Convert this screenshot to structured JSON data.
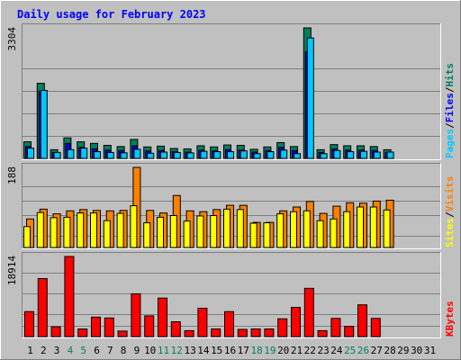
{
  "chart_data": [
    {
      "type": "bar",
      "title": "Daily usage for February 2023",
      "panel": "hits",
      "ylabel_max": "3304",
      "y_axis_label_parts": [
        "Pages",
        "/",
        "Files",
        "/",
        "Hits"
      ],
      "categories": [
        "1",
        "2",
        "3",
        "4",
        "5",
        "6",
        "7",
        "8",
        "9",
        "10",
        "11",
        "12",
        "13",
        "14",
        "15",
        "16",
        "17",
        "18",
        "19",
        "20",
        "21",
        "22",
        "23",
        "24",
        "25",
        "26",
        "27",
        "28",
        "29",
        "30",
        "31"
      ],
      "ylim": [
        0,
        3304
      ],
      "series": [
        {
          "name": "Hits",
          "color": "#007f5f",
          "values": [
            420,
            1900,
            220,
            520,
            420,
            380,
            330,
            300,
            480,
            290,
            310,
            250,
            240,
            320,
            290,
            340,
            330,
            230,
            290,
            400,
            300,
            3304,
            220,
            350,
            320,
            320,
            300,
            220,
            0,
            0,
            0
          ]
        },
        {
          "name": "Files",
          "color": "#0000ff",
          "values": [
            300,
            1700,
            150,
            380,
            280,
            240,
            210,
            200,
            320,
            190,
            200,
            170,
            160,
            210,
            190,
            220,
            210,
            160,
            200,
            280,
            200,
            2700,
            150,
            240,
            210,
            210,
            200,
            150,
            0,
            0,
            0
          ]
        },
        {
          "name": "Pages",
          "color": "#00c8ff",
          "values": [
            260,
            1720,
            150,
            220,
            260,
            170,
            150,
            140,
            230,
            130,
            160,
            150,
            140,
            180,
            170,
            170,
            190,
            120,
            170,
            210,
            120,
            3050,
            120,
            200,
            170,
            180,
            160,
            160,
            0,
            0,
            0
          ]
        }
      ]
    },
    {
      "type": "bar",
      "panel": "visits",
      "ylabel_max": "188",
      "y_axis_label_parts": [
        "Sites",
        "/",
        "Visits"
      ],
      "categories": [
        "1",
        "2",
        "3",
        "4",
        "5",
        "6",
        "7",
        "8",
        "9",
        "10",
        "11",
        "12",
        "13",
        "14",
        "15",
        "16",
        "17",
        "18",
        "19",
        "20",
        "21",
        "22",
        "23",
        "24",
        "25",
        "26",
        "27",
        "28",
        "29",
        "30",
        "31"
      ],
      "ylim": [
        0,
        188
      ],
      "series": [
        {
          "name": "Visits",
          "color": "#ff8000",
          "values": [
            67,
            90,
            79,
            86,
            89,
            87,
            86,
            87,
            188,
            87,
            81,
            122,
            86,
            84,
            89,
            99,
            99,
            59,
            59,
            86,
            95,
            108,
            80,
            97,
            105,
            104,
            109,
            111,
            0,
            0,
            0
          ]
        },
        {
          "name": "Sites",
          "color": "#ffff00",
          "values": [
            49,
            82,
            70,
            71,
            81,
            81,
            63,
            80,
            98,
            58,
            71,
            75,
            62,
            74,
            75,
            90,
            89,
            57,
            58,
            79,
            84,
            86,
            63,
            67,
            84,
            95,
            95,
            88,
            0,
            0,
            0
          ]
        }
      ]
    },
    {
      "type": "bar",
      "panel": "kbytes",
      "ylabel_max": "18914",
      "y_axis_label_parts": [
        "KBytes"
      ],
      "categories": [
        "1",
        "2",
        "3",
        "4",
        "5",
        "6",
        "7",
        "8",
        "9",
        "10",
        "11",
        "12",
        "13",
        "14",
        "15",
        "16",
        "17",
        "18",
        "19",
        "20",
        "21",
        "22",
        "23",
        "24",
        "25",
        "26",
        "27",
        "28",
        "29",
        "30",
        "31"
      ],
      "ylim": [
        0,
        18914
      ],
      "series": [
        {
          "name": "KBytes",
          "color": "#ff0000",
          "values": [
            5900,
            13700,
            2300,
            18914,
            1800,
            4600,
            4400,
            1300,
            10100,
            4900,
            9100,
            3500,
            1400,
            6700,
            1800,
            5900,
            1700,
            1800,
            1800,
            4200,
            6900,
            11400,
            1400,
            4300,
            2400,
            7500,
            4300,
            0,
            0,
            0,
            0
          ]
        }
      ]
    }
  ],
  "x_label_colors": {
    "weekday": "#000000",
    "weekend": "#00805a"
  },
  "weekend_days": [
    4,
    5,
    11,
    12,
    18,
    19,
    25,
    26
  ],
  "legend_colors": {
    "pages": "#00c8ff",
    "files": "#0000ff",
    "hits": "#007f5f",
    "sites": "#ffff00",
    "visits": "#ff8000",
    "kbytes": "#ff0000",
    "separator": "#000000"
  }
}
